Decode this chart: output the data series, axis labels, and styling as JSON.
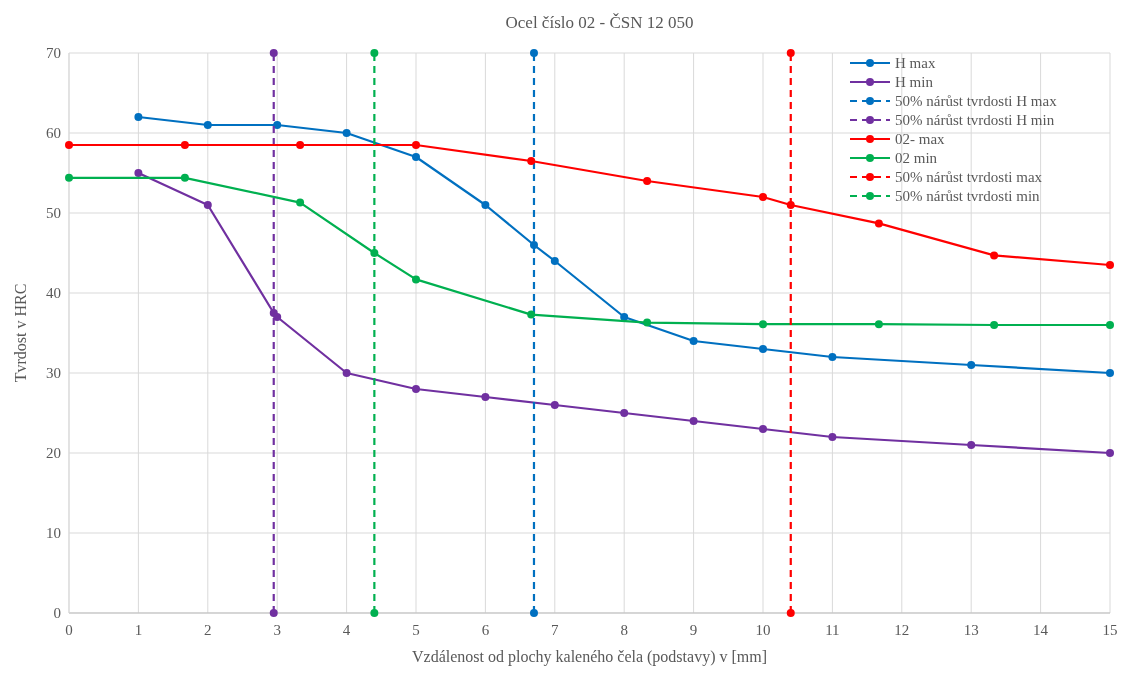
{
  "chart_data": {
    "type": "line",
    "title": "Ocel číslo 02 - ČSN 12 050",
    "xlabel": "Vzdálenost od plochy kaleného čela (podstavy) v [mm]",
    "ylabel": "Tvrdost  v HRC",
    "xlim": [
      0,
      15
    ],
    "xticks": [
      0,
      1,
      2,
      3,
      4,
      5,
      6,
      7,
      8,
      9,
      10,
      11,
      12,
      13,
      14,
      15
    ],
    "ylim": [
      0,
      70
    ],
    "yticks": [
      0,
      10,
      20,
      30,
      40,
      50,
      60,
      70
    ],
    "grid": true,
    "legend": "top right",
    "marker": "circle",
    "series": [
      {
        "name": "H max",
        "color": "#0070c0",
        "line_style": "solid",
        "x": [
          1,
          2,
          3,
          4,
          5,
          6,
          6.7,
          7,
          8,
          9,
          10,
          11,
          13,
          15
        ],
        "values": [
          62,
          61,
          61,
          60,
          57,
          51,
          46,
          44,
          37,
          34,
          33,
          32,
          31,
          30
        ]
      },
      {
        "name": "H min",
        "color": "#7030a0",
        "line_style": "solid",
        "x": [
          1,
          2,
          2.95,
          3,
          4,
          5,
          6,
          7,
          8,
          9,
          10,
          11,
          13,
          15
        ],
        "values": [
          55,
          51,
          37.5,
          37,
          30,
          28,
          27,
          26,
          25,
          24,
          23,
          22,
          21,
          20
        ]
      },
      {
        "name": "50% nárůst tvrdosti H max",
        "color": "#0070c0",
        "line_style": "dashed",
        "x": [
          6.7,
          6.7
        ],
        "values": [
          0,
          70
        ]
      },
      {
        "name": "50% nárůst tvrdosti H min",
        "color": "#7030a0",
        "line_style": "dashed",
        "x": [
          2.95,
          2.95
        ],
        "values": [
          0,
          70
        ]
      },
      {
        "name": "02- max",
        "color": "#ff0000",
        "line_style": "solid",
        "x": [
          0,
          1.67,
          3.33,
          5,
          6.66,
          8.33,
          10,
          10.4,
          11.67,
          13.33,
          15
        ],
        "values": [
          58.5,
          58.5,
          58.5,
          58.5,
          56.5,
          54,
          52,
          51,
          48.7,
          44.7,
          43.5
        ]
      },
      {
        "name": "02 min",
        "color": "#00b050",
        "line_style": "solid",
        "x": [
          0,
          1.67,
          3.33,
          4.4,
          5,
          6.66,
          8.33,
          10,
          11.67,
          13.33,
          15
        ],
        "values": [
          54.4,
          54.4,
          51.3,
          45,
          41.7,
          37.3,
          36.3,
          36.1,
          36.1,
          36,
          36
        ]
      },
      {
        "name": "50% nárůst tvrdosti max",
        "color": "#ff0000",
        "line_style": "dashed",
        "x": [
          10.4,
          10.4
        ],
        "values": [
          0,
          70
        ]
      },
      {
        "name": "50% nárůst tvrdosti min",
        "color": "#00b050",
        "line_style": "dashed",
        "x": [
          4.4,
          4.4
        ],
        "values": [
          0,
          70
        ]
      }
    ]
  }
}
